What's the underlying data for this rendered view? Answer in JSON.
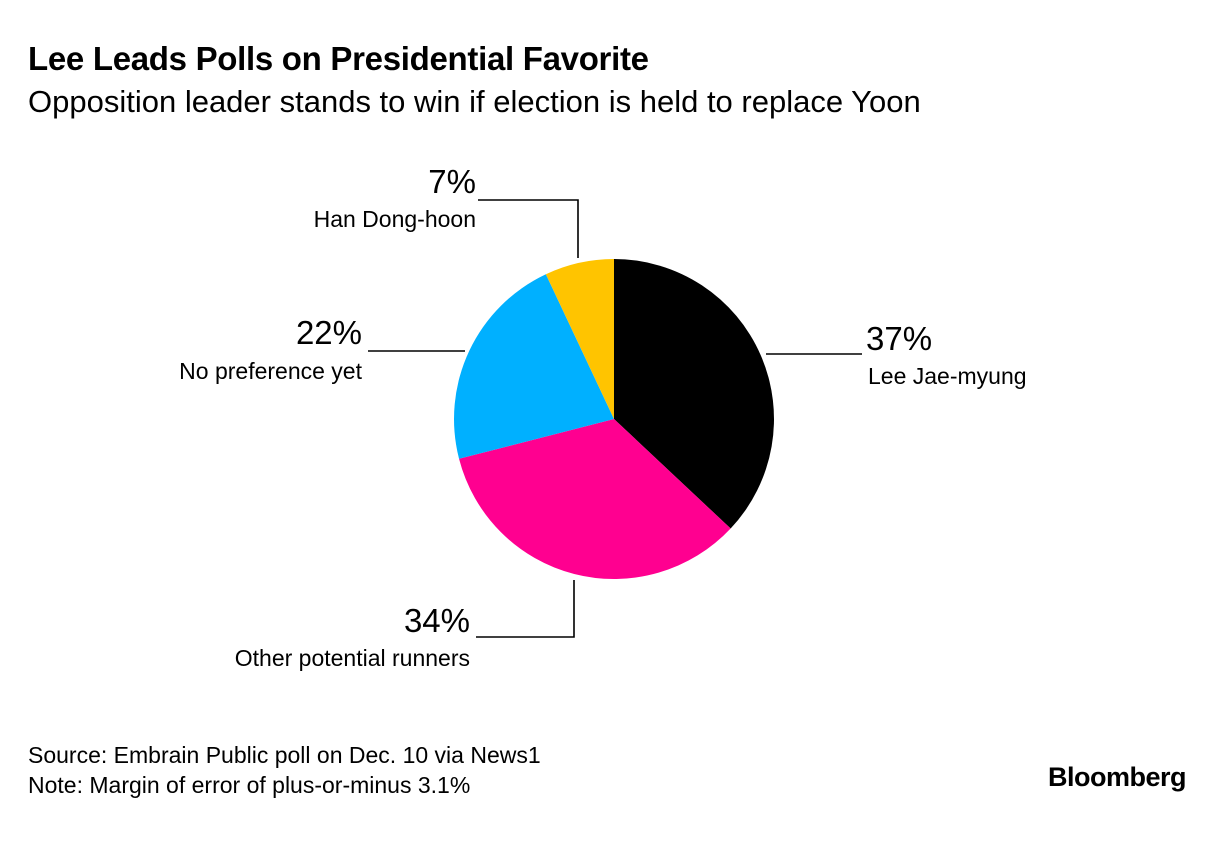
{
  "chart_data": {
    "type": "pie",
    "title": "Lee Leads Polls on Presidential Favorite",
    "subtitle": "Opposition leader stands to win if election is held to replace Yoon",
    "slices": [
      {
        "label": "Lee Jae-myung",
        "value": 37,
        "value_label": "37%",
        "color": "#000000"
      },
      {
        "label": "Other potential runners",
        "value": 34,
        "value_label": "34%",
        "color": "#ff0090"
      },
      {
        "label": "No preference yet",
        "value": 22,
        "value_label": "22%",
        "color": "#00b0ff"
      },
      {
        "label": "Han Dong-hoon",
        "value": 7,
        "value_label": "7%",
        "color": "#ffc400"
      }
    ],
    "start": "12 o'clock, clockwise"
  },
  "footer": {
    "source": "Source: Embrain Public poll on Dec. 10 via News1",
    "note": "Note: Margin of error of plus-or-minus 3.1%"
  },
  "brand": "Bloomberg"
}
